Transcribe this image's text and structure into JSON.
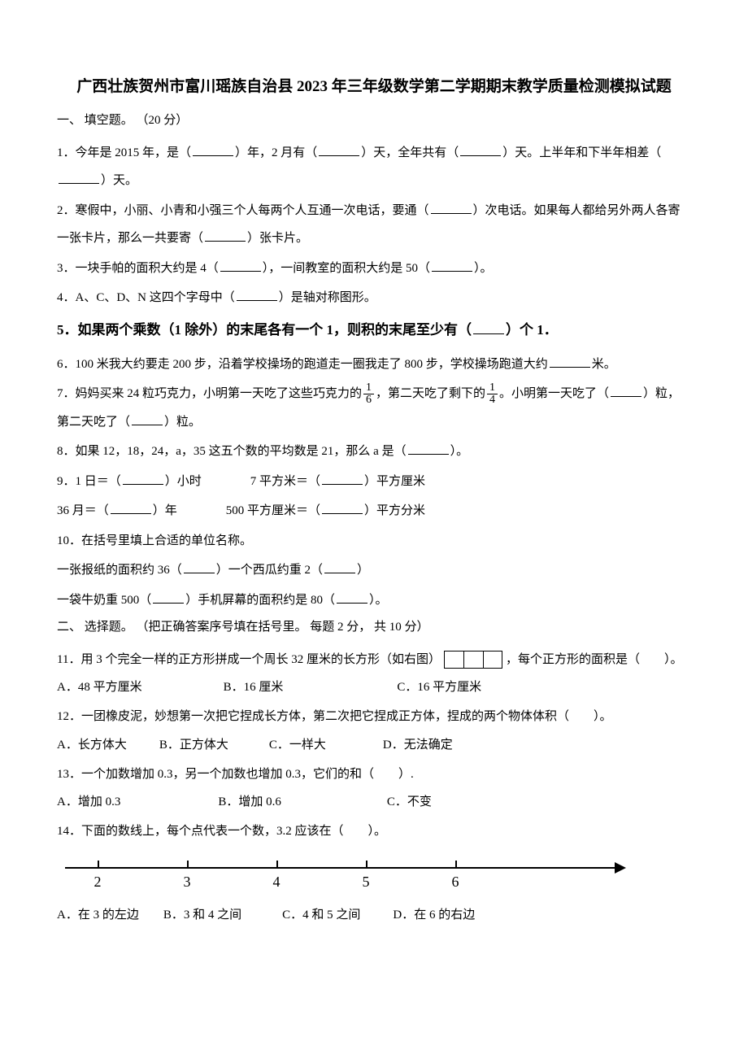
{
  "title": "广西壮族贺州市富川瑶族自治县 2023 年三年级数学第二学期期末教学质量检测模拟试题",
  "section1": {
    "header": "一、 填空题。 （20 分）",
    "q1": "1．今年是 2015 年，是（",
    "q1b": "）年，2 月有（",
    "q1c": "）天，全年共有（",
    "q1d": "）天。上半年和下半年相差（",
    "q1e": "）天。",
    "q2": "2．寒假中，小丽、小青和小强三个人每两个人互通一次电话，要通（",
    "q2b": "）次电话。如果每人都给另外两人各寄一张卡片，那么一共要寄（",
    "q2c": "）张卡片。",
    "q3": "3．一块手帕的面积大约是 4（",
    "q3b": "），一间教室的面积大约是 50（",
    "q3c": "）。",
    "q4": "4．A、C、D、N 这四个字母中（",
    "q4b": "）是轴对称图形。",
    "q5": "5．如果两个乘数（1 除外）的末尾各有一个 1，则积的末尾至少有（",
    "q5b": "）个 1．",
    "q6": "6．100 米我大约要走 200 步，沿着学校操场的跑道走一圈我走了 800 步，学校操场跑道大约",
    "q6b": "米。",
    "q7a": "7．妈妈买来 24 粒巧克力，小明第一天吃了这些巧克力的",
    "q7b": "，第二天吃了剩下的",
    "q7c": "。小明第一天吃了（",
    "q7d": "）粒，第二天吃了（",
    "q7e": "）粒。",
    "frac1_num": "1",
    "frac1_den": "6",
    "frac2_num": "1",
    "frac2_den": "4",
    "q8": "8．如果 12，18，24，a，35 这五个数的平均数是 21，那么 a 是（",
    "q8b": "）。",
    "q9a": "9．1 日＝（",
    "q9a2": "）小时",
    "q9b": "7 平方米＝（",
    "q9b2": "）平方厘米",
    "q9c": "36 月＝（",
    "q9c2": "）年",
    "q9d": "500 平方厘米＝（",
    "q9d2": "）平方分米",
    "q10": "10．在括号里填上合适的单位名称。",
    "q10a": "一张报纸的面积约 36（",
    "q10a2": "）一个西瓜约重 2（",
    "q10a3": "）",
    "q10b": "一袋牛奶重 500（",
    "q10b2": "）手机屏幕的面积约是 80（",
    "q10b3": "）。"
  },
  "section2": {
    "header": "二、 选择题。 （把正确答案序号填在括号里。 每题 2 分， 共 10 分）",
    "q11": "11．用 3 个完全一样的正方形拼成一个周长 32 厘米的长方形（如右图）",
    "q11b": "，每个正方形的面积是（　　）。",
    "q11opts": {
      "a": "A．48 平方厘米",
      "b": "B．16 厘米",
      "c": "C．16 平方厘米"
    },
    "q12": "12．一团橡皮泥，妙想第一次把它捏成长方体，第二次把它捏成正方体，捏成的两个物体体积（　　）。",
    "q12opts": {
      "a": "A．长方体大",
      "b": "B．正方体大",
      "c": "C．一样大",
      "d": "D．无法确定"
    },
    "q13": "13．一个加数增加 0.3，另一个加数也增加 0.3，它们的和（　　）.",
    "q13opts": {
      "a": "A．增加 0.3",
      "b": "B．增加 0.6",
      "c": "C．不变"
    },
    "q14": "14．下面的数线上，每个点代表一个数，3.2 应该在（　　）。",
    "q14opts": {
      "a": "A．在 3 的左边",
      "b": "B．3 和 4 之间",
      "c": "C．4 和 5 之间",
      "d": "D．在 6 的右边"
    }
  },
  "numberLine": {
    "ticks": [
      {
        "pos": 40,
        "label": "2"
      },
      {
        "pos": 150,
        "label": "3"
      },
      {
        "pos": 260,
        "label": "4"
      },
      {
        "pos": 370,
        "label": "5"
      },
      {
        "pos": 480,
        "label": "6"
      }
    ]
  },
  "style": {
    "body_width": 920,
    "body_height": 1302,
    "background": "#ffffff",
    "text_color": "#000000",
    "title_fontsize": 19,
    "body_fontsize": 15,
    "bold_q_fontsize": 17
  }
}
